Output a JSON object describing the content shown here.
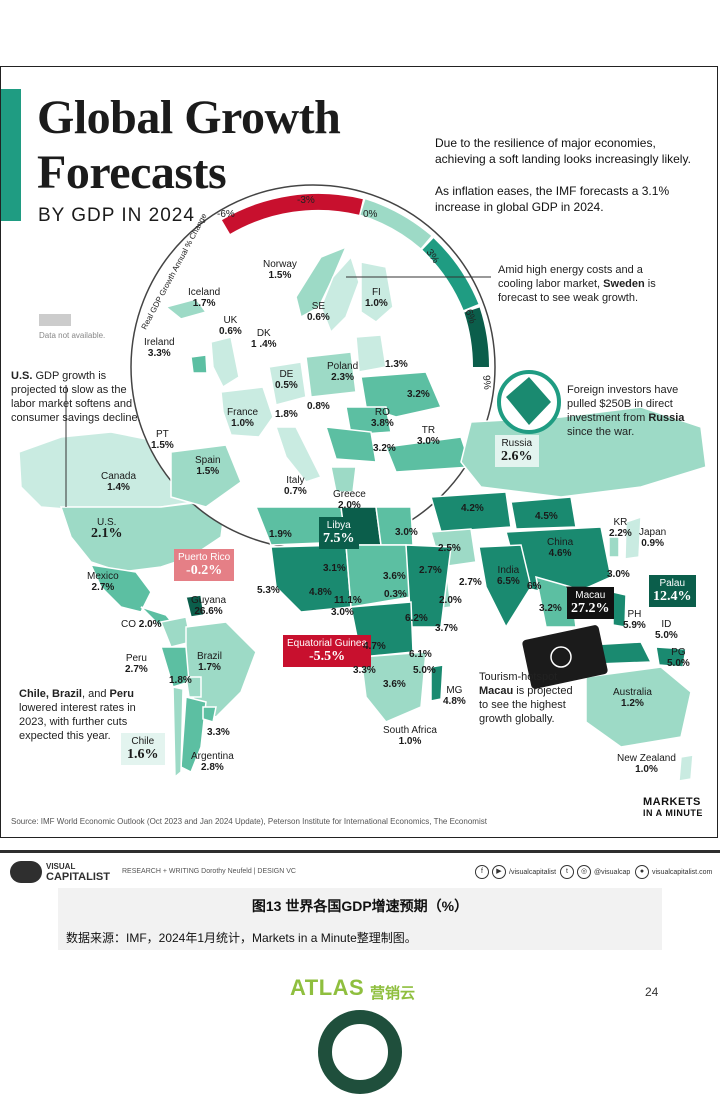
{
  "poster": {
    "title_line1": "Global Growth",
    "title_line2": "Forecasts",
    "subtitle": "BY GDP IN 2024",
    "intro1": "Due to the resilience of major economies, achieving a soft landing looks increasingly likely.",
    "intro2": "As inflation eases, the IMF forecasts a 3.1% increase in global GDP in 2024.",
    "scale_title": "Real GDP Growth Annual % Change",
    "scale_ticks": [
      "-6%",
      "-3%",
      "0%",
      "3%",
      "6%",
      "9%"
    ],
    "no_data": "Data not available.",
    "source": "Source: IMF World Economic Outlook (Oct 2023 and Jan 2024 Update), Peterson Institute for International Economics, The Economist",
    "brand_line1": "MARKETS",
    "brand_line2": "IN A MINUTE"
  },
  "notes": {
    "us_lead": "U.S.",
    "us_text": " GDP growth is projected to slow as the labor market softens and consumer savings decline.",
    "sweden_text1": "Amid high energy costs and a cooling labor market, ",
    "sweden_bold": "Sweden",
    "sweden_text2": " is forecast to see weak growth.",
    "russia_text1": "Foreign investors have pulled $250B in direct investment from ",
    "russia_bold": "Russia",
    "russia_text2": " since the war.",
    "macau_text1": "Tourism-hotspot ",
    "macau_bold": "Macau",
    "macau_text2": " is projected to see the highest growth globally.",
    "latam_bold": "Chile, Brazil",
    "latam_mid": ", and ",
    "latam_bold2": "Peru",
    "latam_text": " lowered interest rates in 2023, with further cuts expected this year."
  },
  "countries": {
    "norway": {
      "name": "Norway",
      "value": "1.5%"
    },
    "iceland": {
      "name": "Iceland",
      "value": "1.7%"
    },
    "uk": {
      "name": "UK",
      "value": "0.6%"
    },
    "dk": {
      "name": "DK",
      "value": "1 .4%"
    },
    "se": {
      "name": "SE",
      "value": "0.6%"
    },
    "fi": {
      "name": "FI",
      "value": "1.0%"
    },
    "ireland": {
      "name": "Ireland",
      "value": "3.3%"
    },
    "de": {
      "name": "DE",
      "value": "0.5%"
    },
    "poland": {
      "name": "Poland",
      "value": "2.3%"
    },
    "baltic": {
      "value": "1.3%"
    },
    "ukraine": {
      "value": "3.2%"
    },
    "cz": {
      "value": "0.8%"
    },
    "france": {
      "name": "France",
      "value": "1.0%"
    },
    "ch": {
      "value": "1.8%"
    },
    "ro": {
      "name": "RO",
      "value": "3.8%"
    },
    "balkan": {
      "value": "3.2%"
    },
    "tr": {
      "name": "TR",
      "value": "3.0%"
    },
    "pt": {
      "name": "PT",
      "value": "1.5%"
    },
    "spain": {
      "name": "Spain",
      "value": "1.5%"
    },
    "italy": {
      "name": "Italy",
      "value": "0.7%"
    },
    "greece": {
      "name": "Greece",
      "value": "2.0%"
    },
    "russia": {
      "name": "Russia",
      "value": "2.6%"
    },
    "canada": {
      "name": "Canada",
      "value": "1.4%"
    },
    "us": {
      "name": "U.S.",
      "value": "2.1%"
    },
    "puerto_rico": {
      "name": "Puerto Rico",
      "value": "-0.2%"
    },
    "mexico": {
      "name": "Mexico",
      "value": "2.7%"
    },
    "guyana": {
      "name": "Guyana",
      "value": "26.6%"
    },
    "co": {
      "name": "CO",
      "value": "2.0%"
    },
    "peru": {
      "name": "Peru",
      "value": "2.7%"
    },
    "brazil": {
      "name": "Brazil",
      "value": "1.7%"
    },
    "bolivia": {
      "value": "1.8%"
    },
    "uruguay": {
      "value": "3.3%"
    },
    "argentina": {
      "name": "Argentina",
      "value": "2.8%"
    },
    "chile": {
      "name": "Chile",
      "value": "1.6%"
    },
    "algeria": {
      "value": "1.9%"
    },
    "libya": {
      "name": "Libya",
      "value": "7.5%"
    },
    "egypt": {
      "value": "3.0%"
    },
    "mali": {
      "value": "3.1%"
    },
    "niger": {
      "value": "3.6%"
    },
    "senegal": {
      "value": "5.3%"
    },
    "ghana": {
      "value": "4.8%"
    },
    "nigeria": {
      "value": "3.0%"
    },
    "cameroon": {
      "value": "11.1%"
    },
    "chad": {
      "value": "0.3%"
    },
    "ethiopia": {
      "value": "6.2%"
    },
    "somalia": {
      "value": "3.7%"
    },
    "eq_guinea": {
      "name": "Equatorial Guinea",
      "value": "-5.5%"
    },
    "drc": {
      "value": "4.7%"
    },
    "kenya": {
      "value": "6.1%"
    },
    "tanzania": {
      "value": "5.0%"
    },
    "angola": {
      "value": "3.3%"
    },
    "mozambique": {
      "value": "3.6%"
    },
    "mg": {
      "name": "MG",
      "value": "4.8%"
    },
    "south_africa": {
      "name": "South Africa",
      "value": "1.0%"
    },
    "kazakhstan": {
      "value": "4.2%"
    },
    "mongolia": {
      "value": "4.5%"
    },
    "iran": {
      "value": "2.5%"
    },
    "saudi": {
      "value": "2.7%"
    },
    "oman": {
      "value": "2.7%"
    },
    "yemen": {
      "value": "2.0%"
    },
    "india": {
      "name": "India",
      "value": "6.5%"
    },
    "bangladesh": {
      "value": "6%"
    },
    "china": {
      "name": "China",
      "value": "4.6%"
    },
    "kr": {
      "name": "KR",
      "value": "2.2%"
    },
    "japan": {
      "name": "Japan",
      "value": "0.9%"
    },
    "taiwan": {
      "value": "3.0%"
    },
    "macau": {
      "name": "Macau",
      "value": "27.2%"
    },
    "thailand": {
      "value": "3.2%"
    },
    "ph": {
      "name": "PH",
      "value": "5.9%"
    },
    "palau": {
      "name": "Palau",
      "value": "12.4%"
    },
    "id": {
      "name": "ID",
      "value": "5.0%"
    },
    "pg": {
      "name": "PG",
      "value": "5.0%"
    },
    "australia": {
      "name": "Australia",
      "value": "1.2%"
    },
    "new_zealand": {
      "name": "New Zealand",
      "value": "1.0%"
    }
  },
  "footer": {
    "brand_top": "VISUAL",
    "brand_bottom": "CAPITALIST",
    "credits": "RESEARCH + WRITING Dorothy Neufeld  |  DESIGN VC",
    "social1": "/visualcapitalist",
    "social2": "@visualcap",
    "site": "visualcapitalist.com"
  },
  "caption": {
    "title": "图13 世界各国GDP增速预期（%）",
    "source": "数据来源：IMF，2024年1月统计，Markets in a Minute整理制图。"
  },
  "page": {
    "logo": "ATLAS",
    "logo_cn": "营销云",
    "number": "24"
  },
  "colors": {
    "brand_teal": "#1f9c82",
    "pale": "#c9ebe1",
    "light": "#9ddac6",
    "mid": "#5cbfa2",
    "dark": "#1a8a70",
    "deep": "#0b5e4b",
    "negative": "#c8102e",
    "negative_light": "#e57f86",
    "no_data": "#cccccc",
    "footer_dark": "#1f4f3c",
    "atlas_green": "#8fbf3f"
  }
}
